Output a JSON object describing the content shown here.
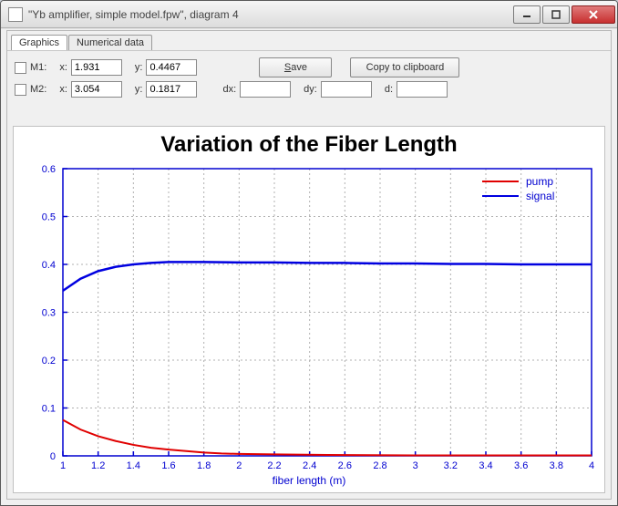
{
  "window": {
    "title": "\"Yb amplifier, simple model.fpw\", diagram 4"
  },
  "tabs": {
    "graphics": "Graphics",
    "numerical": "Numerical data"
  },
  "controls": {
    "m1_label": "M1:",
    "m2_label": "M2:",
    "x_label": "x:",
    "y_label": "y:",
    "dx_label": "dx:",
    "dy_label": "dy:",
    "d_label": "d:",
    "m1_x": "1.931",
    "m1_y": "0.4467",
    "m2_x": "3.054",
    "m2_y": "0.1817",
    "dx": "",
    "dy": "",
    "d": "",
    "save_u": "S",
    "save_rest": "ave",
    "copy_label": "Copy to clipboard"
  },
  "chart": {
    "title": "Variation of the Fiber Length",
    "xlabel": "fiber length (m)",
    "xlim": [
      1,
      4
    ],
    "ylim": [
      0,
      0.6
    ],
    "xticks": [
      1,
      1.2,
      1.4,
      1.6,
      1.8,
      2,
      2.2,
      2.4,
      2.6,
      2.8,
      3,
      3.2,
      3.4,
      3.6,
      3.8,
      4
    ],
    "yticks": [
      0,
      0.1,
      0.2,
      0.3,
      0.4,
      0.5,
      0.6
    ],
    "grid_color": "#b0b0b0",
    "axis_color": "#0000d0",
    "background": "#ffffff",
    "legend": {
      "position": "top-right",
      "text_color": "#0000d0",
      "items": [
        {
          "label": "pump",
          "color": "#e00000"
        },
        {
          "label": "signal",
          "color": "#0000e0"
        }
      ]
    },
    "series": [
      {
        "name": "pump",
        "color": "#e00000",
        "line_width": 2,
        "data": [
          [
            1,
            0.075
          ],
          [
            1.1,
            0.055
          ],
          [
            1.2,
            0.041
          ],
          [
            1.3,
            0.031
          ],
          [
            1.4,
            0.023
          ],
          [
            1.5,
            0.017
          ],
          [
            1.6,
            0.013
          ],
          [
            1.7,
            0.01
          ],
          [
            1.8,
            0.007
          ],
          [
            1.9,
            0.005
          ],
          [
            2.0,
            0.004
          ],
          [
            2.2,
            0.003
          ],
          [
            2.5,
            0.002
          ],
          [
            3.0,
            0.001
          ],
          [
            3.5,
            0.001
          ],
          [
            4.0,
            0.001
          ]
        ]
      },
      {
        "name": "signal",
        "color": "#0000e0",
        "line_width": 2.5,
        "data": [
          [
            1,
            0.345
          ],
          [
            1.1,
            0.37
          ],
          [
            1.2,
            0.386
          ],
          [
            1.3,
            0.395
          ],
          [
            1.4,
            0.4
          ],
          [
            1.5,
            0.403
          ],
          [
            1.6,
            0.405
          ],
          [
            1.8,
            0.405
          ],
          [
            2.0,
            0.404
          ],
          [
            2.2,
            0.404
          ],
          [
            2.4,
            0.403
          ],
          [
            2.6,
            0.403
          ],
          [
            2.8,
            0.402
          ],
          [
            3.0,
            0.402
          ],
          [
            3.2,
            0.401
          ],
          [
            3.4,
            0.401
          ],
          [
            3.6,
            0.4
          ],
          [
            3.8,
            0.4
          ],
          [
            4.0,
            0.4
          ]
        ]
      }
    ]
  }
}
